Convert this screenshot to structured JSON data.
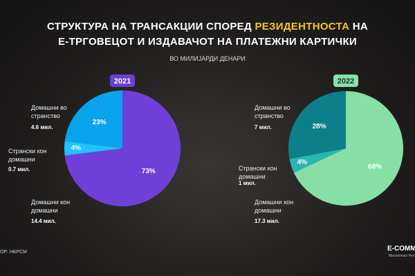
{
  "header": {
    "title_line1": [
      "СТРУКТУРА НА ТРАНСАКЦИИ СПОРЕД",
      "РЕЗИДЕНТНОСТА",
      "НА"
    ],
    "title_line2": "Е-ТРГОВЕЦОТ И ИЗДАВАЧОТ НА ПЛАТЕЖНИ КАРТИЧКИ",
    "subtitle": "ВО МИЛИЈАРДИ ДЕНАРИ"
  },
  "chart_data": [
    {
      "type": "pie",
      "title": "2021",
      "badge_color": "#6a3fd4",
      "badge_text_color": "#ffffff",
      "categories": [
        "Домашни во странство",
        "Странски кон домашни",
        "Домашни кон домашни"
      ],
      "values": [
        23,
        4,
        73
      ],
      "value_labels": [
        "23%",
        "4%",
        "73%"
      ],
      "amount_labels": [
        "4.6 мил.",
        "0.7 мил.",
        "14.4 мил."
      ],
      "colors": [
        "#0aa3ee",
        "#22c2ff",
        "#6f40d8"
      ]
    },
    {
      "type": "pie",
      "title": "2022",
      "badge_color": "#86e2a8",
      "badge_text_color": "#1e2a3a",
      "categories": [
        "Домашни во странство",
        "Странски кон домашни",
        "Домашни кон домашни"
      ],
      "values": [
        28,
        4,
        68
      ],
      "value_labels": [
        "28%",
        "4%",
        "68%"
      ],
      "amount_labels": [
        "7 мил.",
        "1 мил.",
        "17.3 мил."
      ],
      "colors": [
        "#0c7f8b",
        "#2bb5b1",
        "#86e0a6"
      ]
    }
  ],
  "footer": {
    "source": "ОР: НБРСМ",
    "logo_name": "E-COMME",
    "logo_tagline": "Macedonian Res"
  }
}
